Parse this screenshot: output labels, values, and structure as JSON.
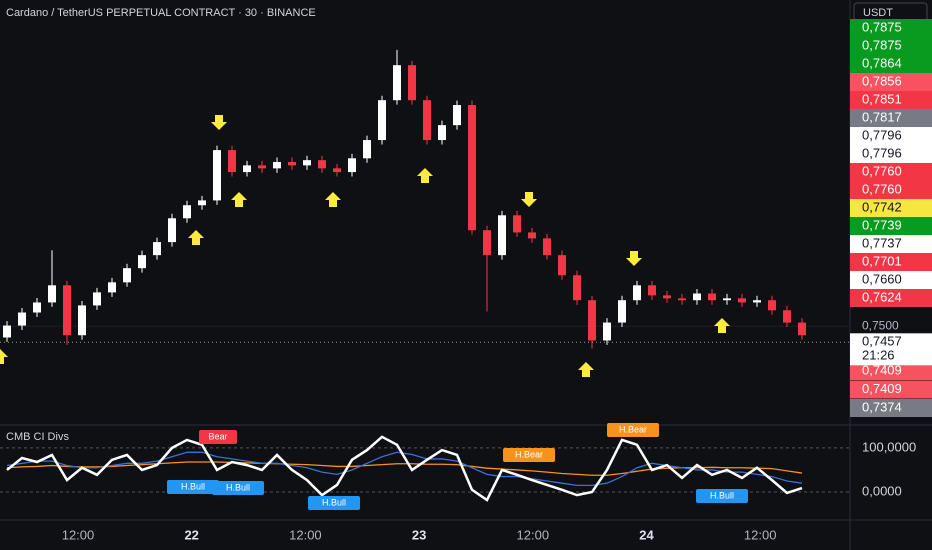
{
  "header": {
    "symbol": "Cardano / TetherUS PERPETUAL CONTRACT · 30 · BINANCE",
    "currency_button": "USDT"
  },
  "chart_data": [
    {
      "type": "candlestick",
      "up_color": "#ffffff",
      "down_color": "#f23645",
      "open": [
        0.747,
        0.7502,
        0.7537,
        0.7564,
        0.761,
        0.7476,
        0.7556,
        0.7591,
        0.7618,
        0.7656,
        0.7691,
        0.7726,
        0.779,
        0.7825,
        0.7838,
        0.7973,
        0.7914,
        0.7932,
        0.7924,
        0.7941,
        0.7932,
        0.7946,
        0.7924,
        0.7914,
        0.7951,
        0.8,
        0.8107,
        0.8201,
        0.8107,
        0.8,
        0.804,
        0.8094,
        0.7758,
        0.7691,
        0.7798,
        0.7752,
        0.7736,
        0.7691,
        0.7637,
        0.757,
        0.7462,
        0.751,
        0.757,
        0.761,
        0.7583,
        0.7575,
        0.757,
        0.7588,
        0.757,
        0.7575,
        0.7564,
        0.757,
        0.7543,
        0.751
      ],
      "high": [
        0.7514,
        0.7549,
        0.7576,
        0.7704,
        0.7622,
        0.7568,
        0.7603,
        0.763,
        0.7668,
        0.7703,
        0.7738,
        0.7802,
        0.7837,
        0.785,
        0.7985,
        0.7985,
        0.7944,
        0.7944,
        0.7953,
        0.7953,
        0.7958,
        0.7958,
        0.7936,
        0.7963,
        0.8012,
        0.8119,
        0.8242,
        0.8213,
        0.8119,
        0.8052,
        0.8106,
        0.8106,
        0.777,
        0.781,
        0.781,
        0.7764,
        0.7748,
        0.7703,
        0.7649,
        0.7582,
        0.7522,
        0.7582,
        0.7622,
        0.7622,
        0.7595,
        0.7587,
        0.76,
        0.76,
        0.7587,
        0.7587,
        0.7582,
        0.7582,
        0.7555,
        0.7522
      ],
      "low": [
        0.7458,
        0.749,
        0.7525,
        0.7552,
        0.745,
        0.7464,
        0.7544,
        0.7579,
        0.7606,
        0.7644,
        0.7679,
        0.7714,
        0.7778,
        0.7813,
        0.7826,
        0.7902,
        0.7902,
        0.7912,
        0.7912,
        0.792,
        0.792,
        0.7912,
        0.7902,
        0.7902,
        0.7939,
        0.7988,
        0.8095,
        0.8095,
        0.7988,
        0.7988,
        0.8028,
        0.7746,
        0.754,
        0.7679,
        0.774,
        0.7724,
        0.7679,
        0.7625,
        0.7558,
        0.744,
        0.745,
        0.7498,
        0.7558,
        0.7571,
        0.7563,
        0.7558,
        0.7558,
        0.7558,
        0.7558,
        0.7552,
        0.7552,
        0.7531,
        0.7498,
        0.7464
      ],
      "close": [
        0.7502,
        0.7537,
        0.7564,
        0.761,
        0.7476,
        0.7556,
        0.7591,
        0.7618,
        0.7656,
        0.7691,
        0.7726,
        0.779,
        0.7825,
        0.7838,
        0.7973,
        0.7914,
        0.7932,
        0.7924,
        0.7941,
        0.7932,
        0.7946,
        0.7924,
        0.7914,
        0.7951,
        0.8,
        0.8107,
        0.8201,
        0.8107,
        0.8,
        0.804,
        0.8094,
        0.7758,
        0.7691,
        0.7798,
        0.7752,
        0.7736,
        0.7691,
        0.7637,
        0.757,
        0.7462,
        0.751,
        0.757,
        0.761,
        0.7583,
        0.7575,
        0.757,
        0.7588,
        0.757,
        0.7575,
        0.7564,
        0.757,
        0.7543,
        0.751,
        0.7476
      ],
      "ylim": [
        0.7235,
        0.8376
      ],
      "yticks": [
        {
          "value": 0.75,
          "label": "0,7500"
        }
      ],
      "last_price": {
        "value": 0.7457,
        "label": "0,7457"
      },
      "countdown": "21:26",
      "price_labels_upper": [
        {
          "value": 0.7875,
          "label": "0,7875",
          "color": "#089b1f"
        },
        {
          "value": 0.7875,
          "label": "0,7875",
          "color": "#089b1f"
        },
        {
          "value": 0.7864,
          "label": "0,7864",
          "color": "#089b1f"
        },
        {
          "value": 0.7856,
          "label": "0,7856",
          "color": "#f7525f"
        },
        {
          "value": 0.7851,
          "label": "0,7851",
          "color": "#f23645"
        },
        {
          "value": 0.7817,
          "label": "0,7817",
          "color": "#787b86"
        },
        {
          "value": 0.7796,
          "label": "0,7796",
          "color": "#ffffff"
        },
        {
          "value": 0.7796,
          "label": "0,7796",
          "color": "#ffffff"
        },
        {
          "value": 0.776,
          "label": "0,7760",
          "color": "#f23645"
        },
        {
          "value": 0.776,
          "label": "0,7760",
          "color": "#f23645"
        },
        {
          "value": 0.7742,
          "label": "0,7742",
          "color": "#f5e642"
        },
        {
          "value": 0.7739,
          "label": "0,7739",
          "color": "#089b1f"
        },
        {
          "value": 0.7737,
          "label": "0,7737",
          "color": "#ffffff"
        },
        {
          "value": 0.7701,
          "label": "0,7701",
          "color": "#f23645"
        },
        {
          "value": 0.766,
          "label": "0,7660",
          "color": "#ffffff"
        },
        {
          "value": 0.7624,
          "label": "0,7624",
          "color": "#f23645"
        }
      ],
      "price_labels_lower": [
        {
          "value": 0.7409,
          "label": "0,7409",
          "color": "#f7525f"
        },
        {
          "value": 0.7409,
          "label": "0,7409",
          "color": "#f7525f"
        },
        {
          "value": 0.7374,
          "label": "0,7374",
          "color": "#787b86"
        }
      ],
      "xtick_labels": [
        "12:00",
        "22",
        "12:00",
        "23",
        "12:00",
        "24",
        "12:00"
      ]
    },
    {
      "type": "line",
      "title": "CMB CI Divs",
      "series": [
        {
          "color": "#f7931a",
          "values": [
            55,
            57,
            58,
            60,
            58,
            57,
            57,
            58,
            60,
            62,
            64,
            66,
            68,
            68,
            68,
            67,
            66,
            65,
            64,
            63,
            62,
            60,
            58,
            58,
            60,
            62,
            64,
            64,
            63,
            63,
            62,
            58,
            54,
            52,
            50,
            48,
            45,
            42,
            40,
            38,
            38,
            42,
            47,
            52,
            54,
            55,
            55,
            56,
            55,
            55,
            54,
            53,
            48,
            43
          ]
        },
        {
          "color": "#3b6fd9",
          "values": [
            60,
            65,
            70,
            70,
            60,
            55,
            55,
            60,
            65,
            65,
            70,
            80,
            90,
            90,
            80,
            75,
            70,
            65,
            65,
            60,
            55,
            45,
            40,
            50,
            65,
            80,
            90,
            85,
            75,
            75,
            70,
            55,
            40,
            35,
            35,
            30,
            25,
            20,
            15,
            15,
            20,
            35,
            55,
            65,
            60,
            55,
            50,
            50,
            45,
            45,
            40,
            35,
            25,
            20
          ]
        },
        {
          "color": "#ffffff",
          "values": [
            50,
            77,
            68,
            84,
            27,
            55,
            39,
            73,
            84,
            50,
            61,
            100,
            118,
            107,
            50,
            68,
            61,
            50,
            84,
            50,
            27,
            -7,
            16,
            73,
            95,
            125,
            107,
            50,
            73,
            95,
            84,
            5,
            -18,
            50,
            39,
            27,
            16,
            5,
            -7,
            0,
            50,
            118,
            107,
            50,
            61,
            32,
            61,
            39,
            50,
            32,
            55,
            27,
            -2,
            9
          ]
        }
      ],
      "ylim": [
        -52,
        145
      ],
      "yticks": [
        {
          "value": 100,
          "label": "100,0000"
        },
        {
          "value": 0,
          "label": "0,0000"
        }
      ],
      "divergence_labels": [
        {
          "label": "Bear",
          "color": "#f23645"
        },
        {
          "label": "H.Bear",
          "color": "#f7931a"
        },
        {
          "label": "H.Bear",
          "color": "#f7931a"
        },
        {
          "label": "H.Bull",
          "color": "#2196f3"
        },
        {
          "label": "H.Bull",
          "color": "#2196f3"
        },
        {
          "label": "H.Bull",
          "color": "#2196f3"
        },
        {
          "label": "H.Bull",
          "color": "#2196f3"
        }
      ]
    }
  ]
}
